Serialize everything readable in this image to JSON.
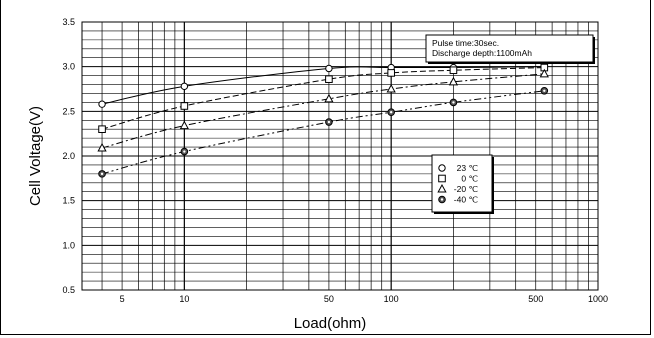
{
  "chart_data": {
    "type": "line",
    "xlabel": "Load(ohm)",
    "ylabel": "Cell Voltage(V)",
    "x_scale": "log",
    "xlim": [
      3.2,
      1000
    ],
    "ylim": [
      0.5,
      3.5
    ],
    "x_ticks": [
      5,
      10,
      50,
      100,
      500,
      1000
    ],
    "y_ticks": [
      "0.5",
      "1.0",
      "1.5",
      "2.0",
      "2.5",
      "3.0",
      "3.5"
    ],
    "grid": true,
    "annotation": [
      "Pulse time:30sec.",
      "Discharge depth:1100mAh"
    ],
    "legend_position": "right-center",
    "series": [
      {
        "name": "23 ℃",
        "marker": "circle",
        "dash": "solid",
        "x": [
          4,
          10,
          50,
          100,
          200,
          550
        ],
        "y": [
          2.58,
          2.78,
          2.98,
          2.99,
          2.99,
          3.0
        ]
      },
      {
        "name": "0 ℃",
        "marker": "square",
        "dash": "dashed",
        "x": [
          4,
          10,
          50,
          100,
          200,
          550
        ],
        "y": [
          2.3,
          2.56,
          2.86,
          2.93,
          2.96,
          2.99
        ]
      },
      {
        "name": "-20 ℃",
        "marker": "triangle",
        "dash": "dashdot",
        "x": [
          4,
          10,
          50,
          100,
          200,
          550
        ],
        "y": [
          2.09,
          2.34,
          2.64,
          2.75,
          2.83,
          2.92
        ]
      },
      {
        "name": "-40 ℃",
        "marker": "filled-circle",
        "dash": "dashdotdot",
        "x": [
          4,
          10,
          50,
          100,
          200,
          550
        ],
        "y": [
          1.8,
          2.05,
          2.38,
          2.49,
          2.6,
          2.73
        ]
      }
    ]
  }
}
